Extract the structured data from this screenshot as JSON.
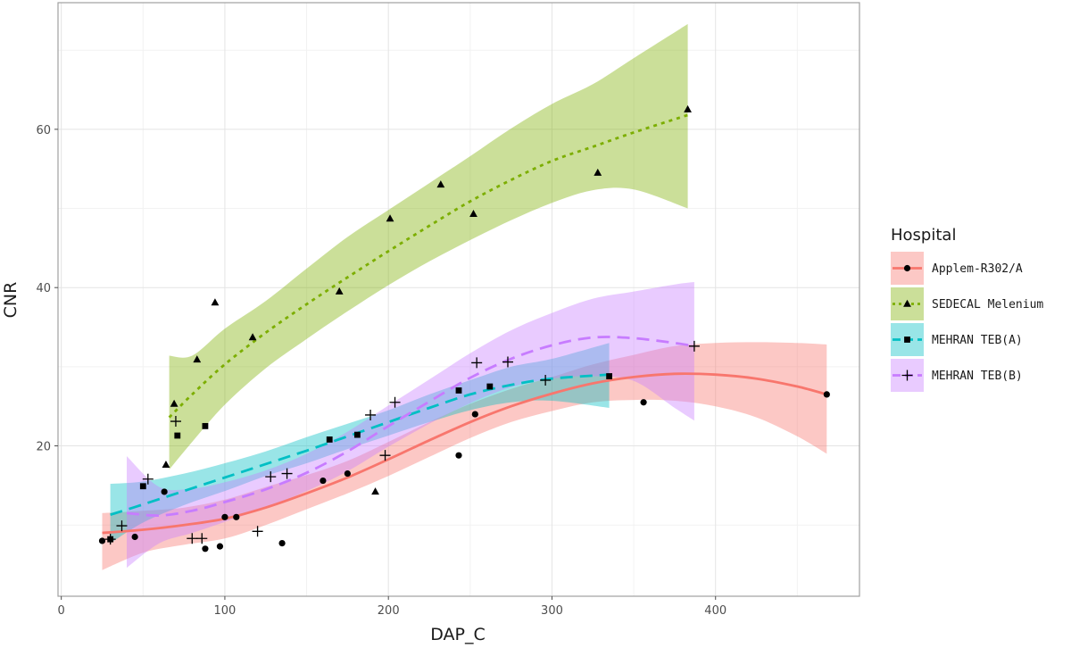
{
  "chart_data": {
    "type": "scatter",
    "xlabel": "DAP_C",
    "ylabel": "CNR",
    "xlim": [
      -2,
      488
    ],
    "ylim": [
      1,
      76
    ],
    "xticks": [
      0,
      100,
      200,
      300,
      400
    ],
    "yticks": [
      20,
      40,
      60
    ],
    "grid": true,
    "legend": {
      "title": "Hospital",
      "position": "right"
    },
    "series": [
      {
        "name": "Applem-R302/A",
        "color": "#F8766D",
        "marker": "circle",
        "linestyle": "solid",
        "points": [
          [
            25,
            8.0
          ],
          [
            45,
            8.5
          ],
          [
            63,
            14.2
          ],
          [
            88,
            7.0
          ],
          [
            97,
            7.3
          ],
          [
            100,
            11.0
          ],
          [
            107,
            11.0
          ],
          [
            135,
            7.7
          ],
          [
            160,
            15.6
          ],
          [
            175,
            16.5
          ],
          [
            243,
            18.8
          ],
          [
            253,
            24.0
          ],
          [
            356,
            25.5
          ],
          [
            468,
            26.5
          ]
        ],
        "fit": [
          [
            25,
            9.0
          ],
          [
            50,
            9.4
          ],
          [
            75,
            10.0
          ],
          [
            100,
            10.8
          ],
          [
            125,
            12.2
          ],
          [
            150,
            14.0
          ],
          [
            175,
            16.0
          ],
          [
            200,
            18.3
          ],
          [
            225,
            20.7
          ],
          [
            250,
            23.0
          ],
          [
            275,
            25.0
          ],
          [
            300,
            26.6
          ],
          [
            325,
            27.9
          ],
          [
            350,
            28.7
          ],
          [
            375,
            29.1
          ],
          [
            400,
            29.0
          ],
          [
            425,
            28.5
          ],
          [
            450,
            27.5
          ],
          [
            468,
            26.5
          ]
        ],
        "band": [
          [
            25,
            4.3,
            11.5
          ],
          [
            50,
            6.5,
            11.8
          ],
          [
            75,
            7.5,
            12.2
          ],
          [
            100,
            8.3,
            13.2
          ],
          [
            125,
            10.0,
            14.8
          ],
          [
            150,
            12.0,
            16.3
          ],
          [
            175,
            14.0,
            18.1
          ],
          [
            200,
            16.2,
            20.5
          ],
          [
            225,
            18.6,
            23.0
          ],
          [
            250,
            21.0,
            25.3
          ],
          [
            275,
            23.0,
            27.2
          ],
          [
            300,
            24.4,
            28.7
          ],
          [
            325,
            25.5,
            30.3
          ],
          [
            350,
            25.8,
            31.5
          ],
          [
            375,
            25.7,
            32.6
          ],
          [
            400,
            25.0,
            33.0
          ],
          [
            425,
            23.6,
            33.1
          ],
          [
            450,
            21.2,
            33.0
          ],
          [
            468,
            19.0,
            32.8
          ]
        ]
      },
      {
        "name": "SEDECAL Melenium",
        "color": "#7CAE00",
        "marker": "triangle",
        "linestyle": "dotted",
        "points": [
          [
            64,
            17.6
          ],
          [
            69,
            25.3
          ],
          [
            83,
            30.9
          ],
          [
            94,
            38.1
          ],
          [
            117,
            33.7
          ],
          [
            170,
            39.5
          ],
          [
            192,
            14.2
          ],
          [
            201,
            48.7
          ],
          [
            232,
            53.0
          ],
          [
            252,
            49.3
          ],
          [
            328,
            54.5
          ],
          [
            383,
            62.5
          ]
        ],
        "fit": [
          [
            66,
            23.6
          ],
          [
            80,
            26.5
          ],
          [
            100,
            30.3
          ],
          [
            125,
            34.3
          ],
          [
            150,
            37.9
          ],
          [
            175,
            41.3
          ],
          [
            200,
            44.6
          ],
          [
            225,
            47.8
          ],
          [
            250,
            50.9
          ],
          [
            275,
            53.6
          ],
          [
            300,
            56.0
          ],
          [
            325,
            57.8
          ],
          [
            350,
            59.6
          ],
          [
            383,
            61.8
          ]
        ],
        "band": [
          [
            66,
            17.0,
            31.4
          ],
          [
            80,
            20.5,
            31.4
          ],
          [
            100,
            25.2,
            34.8
          ],
          [
            125,
            29.8,
            38.3
          ],
          [
            150,
            33.5,
            42.4
          ],
          [
            175,
            37.0,
            46.4
          ],
          [
            200,
            40.3,
            49.8
          ],
          [
            225,
            43.3,
            53.2
          ],
          [
            250,
            46.0,
            56.6
          ],
          [
            275,
            48.5,
            60.1
          ],
          [
            300,
            50.7,
            63.2
          ],
          [
            325,
            52.3,
            65.7
          ],
          [
            350,
            52.4,
            69.0
          ],
          [
            383,
            50.0,
            73.3
          ]
        ]
      },
      {
        "name": "MEHRAN TEB(A)",
        "color": "#00BFC4",
        "marker": "square",
        "linestyle": "dashed",
        "points": [
          [
            30,
            8.2
          ],
          [
            50,
            14.9
          ],
          [
            71,
            21.3
          ],
          [
            88,
            22.5
          ],
          [
            164,
            20.8
          ],
          [
            181,
            21.4
          ],
          [
            243,
            27.0
          ],
          [
            262,
            27.5
          ],
          [
            335,
            28.8
          ]
        ],
        "fit": [
          [
            30,
            11.3
          ],
          [
            50,
            12.6
          ],
          [
            75,
            14.3
          ],
          [
            100,
            16.0
          ],
          [
            125,
            17.7
          ],
          [
            150,
            19.4
          ],
          [
            175,
            21.2
          ],
          [
            200,
            23.0
          ],
          [
            225,
            24.8
          ],
          [
            250,
            26.5
          ],
          [
            275,
            27.7
          ],
          [
            300,
            28.5
          ],
          [
            335,
            29.0
          ]
        ],
        "band": [
          [
            30,
            7.7,
            15.2
          ],
          [
            50,
            10.3,
            15.5
          ],
          [
            75,
            12.5,
            16.5
          ],
          [
            100,
            14.3,
            17.8
          ],
          [
            125,
            16.2,
            19.3
          ],
          [
            150,
            17.8,
            21.1
          ],
          [
            175,
            19.6,
            22.8
          ],
          [
            200,
            21.3,
            24.5
          ],
          [
            225,
            23.0,
            26.5
          ],
          [
            250,
            24.5,
            28.3
          ],
          [
            275,
            25.5,
            30.0
          ],
          [
            300,
            25.7,
            31.0
          ],
          [
            335,
            24.8,
            33.0
          ]
        ]
      },
      {
        "name": "MEHRAN TEB(B)",
        "color": "#C77CFF",
        "marker": "cross",
        "linestyle": "dashed",
        "points": [
          [
            30,
            8.2
          ],
          [
            37,
            9.9
          ],
          [
            53,
            15.8
          ],
          [
            70,
            23.1
          ],
          [
            80,
            8.3
          ],
          [
            86,
            8.3
          ],
          [
            120,
            9.2
          ],
          [
            128,
            16.1
          ],
          [
            138,
            16.5
          ],
          [
            189,
            23.9
          ],
          [
            198,
            18.8
          ],
          [
            204,
            25.5
          ],
          [
            254,
            30.5
          ],
          [
            273,
            30.6
          ],
          [
            296,
            28.3
          ],
          [
            387,
            32.6
          ]
        ],
        "fit": [
          [
            40,
            11.5
          ],
          [
            60,
            11.2
          ],
          [
            80,
            11.8
          ],
          [
            100,
            12.9
          ],
          [
            125,
            14.5
          ],
          [
            150,
            16.6
          ],
          [
            175,
            19.3
          ],
          [
            200,
            22.5
          ],
          [
            225,
            25.6
          ],
          [
            250,
            28.6
          ],
          [
            275,
            31.0
          ],
          [
            300,
            32.7
          ],
          [
            325,
            33.7
          ],
          [
            350,
            33.6
          ],
          [
            375,
            33.0
          ],
          [
            387,
            32.6
          ]
        ],
        "band": [
          [
            40,
            4.6,
            18.7
          ],
          [
            60,
            7.7,
            14.8
          ],
          [
            80,
            9.0,
            14.6
          ],
          [
            100,
            10.4,
            15.4
          ],
          [
            125,
            12.2,
            16.9
          ],
          [
            150,
            14.3,
            19.0
          ],
          [
            175,
            16.8,
            21.8
          ],
          [
            200,
            19.9,
            25.1
          ],
          [
            225,
            22.8,
            28.4
          ],
          [
            250,
            25.4,
            31.7
          ],
          [
            275,
            27.4,
            34.6
          ],
          [
            300,
            28.5,
            36.8
          ],
          [
            325,
            28.8,
            38.6
          ],
          [
            350,
            28.2,
            39.5
          ],
          [
            375,
            24.8,
            40.4
          ],
          [
            387,
            23.2,
            40.7
          ]
        ]
      }
    ]
  }
}
